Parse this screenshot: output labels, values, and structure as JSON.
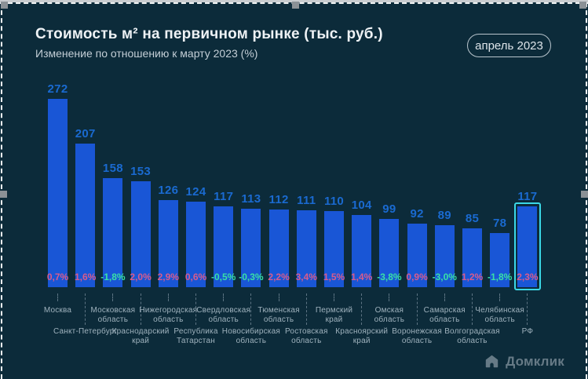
{
  "header": {
    "title": "Стоимость м² на первичном рынке (тыс. руб.)",
    "subtitle": "Изменение по отношению к марту 2023 (%)",
    "period_badge": "апрель 2023"
  },
  "chart_data": {
    "type": "bar",
    "title": "Стоимость м² на первичном рынке (тыс. руб.)",
    "subtitle": "Изменение по отношению к марту 2023 (%)",
    "period": "апрель 2023",
    "unit": "тыс. руб.",
    "categories": [
      "Москва",
      "Санкт-Петербург",
      "Московская\nобласть",
      "Краснодарский\nкрай",
      "Нижегородская\nобласть",
      "Республика\nТатарстан",
      "Свердловская\nобласть",
      "Новосибирская\nобласть",
      "Тюменская\nобласть",
      "Ростовская\nобласть",
      "Пермский\nкрай",
      "Красноярский\nкрай",
      "Омская\nобласть",
      "Воронежская\nобласть",
      "Самарская\nобласть",
      "Волгоградская\nобласть",
      "Челябинская\nобласть",
      "РФ"
    ],
    "values": [
      272,
      207,
      158,
      153,
      126,
      124,
      117,
      113,
      112,
      111,
      110,
      104,
      99,
      92,
      89,
      85,
      78,
      117
    ],
    "change_vs_march_2023_pct": [
      0.7,
      1.6,
      -1.8,
      2.0,
      2.9,
      0.6,
      -0.5,
      -0.3,
      2.2,
      3.4,
      1.5,
      1.4,
      -3.8,
      0.9,
      -3.0,
      1.2,
      -1.8,
      2.3
    ],
    "change_labels": [
      "0,7%",
      "1,6%",
      "-1,8%",
      "2,0%",
      "2,9%",
      "0,6%",
      "-0,5%",
      "-0,3%",
      "2,2%",
      "3,4%",
      "1,5%",
      "1,4%",
      "-3,8%",
      "0,9%",
      "-3,0%",
      "1,2%",
      "-1,8%",
      "2,3%"
    ],
    "highlight_category": "РФ",
    "highlight_index": 17,
    "ylim": [
      0,
      290
    ],
    "grid": false,
    "legend": false,
    "value_labels_position": "above-bars",
    "change_labels_position": "inside-bar-bottom"
  },
  "colors": {
    "background": "#0c2b3a",
    "bar": "#1956d6",
    "value_label": "#1a6ad0",
    "positive_change": "#d75c8c",
    "negative_change": "#38e0a6",
    "highlight_outline": "#3bd8e6",
    "axis_label": "#9fb2bd",
    "title": "#eef2f5",
    "subtitle": "#c3ced6"
  },
  "footer": {
    "logo_text": "Домклик"
  }
}
